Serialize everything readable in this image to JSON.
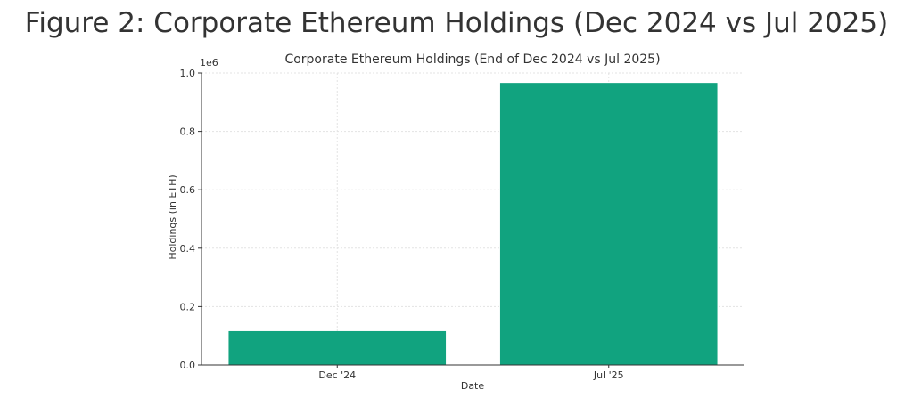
{
  "figure": {
    "title": "Figure 2: Corporate Ethereum Holdings (Dec 2024 vs Jul 2025)"
  },
  "chart_data": {
    "type": "bar",
    "title": "Corporate Ethereum Holdings (End of Dec 2024 vs Jul 2025)",
    "xlabel": "Date",
    "ylabel": "Holdings (in ETH)",
    "y_scale_label": "1e6",
    "categories": [
      "Dec '24",
      "Jul '25"
    ],
    "values": [
      116000,
      966000
    ],
    "ylim": [
      0,
      1000000
    ],
    "yticks": [
      0,
      200000,
      400000,
      600000,
      800000,
      1000000
    ],
    "ytick_labels": [
      "0.0",
      "0.2",
      "0.4",
      "0.6",
      "0.8",
      "1.0"
    ],
    "grid": true,
    "bar_color": "#11a37f"
  }
}
